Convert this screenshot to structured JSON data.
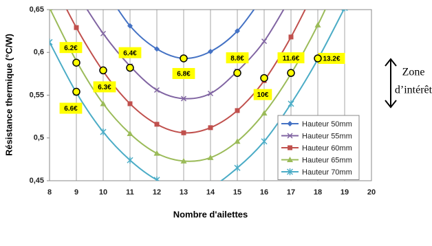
{
  "chart_data": {
    "type": "line",
    "xlabel": "Nombre d'ailettes",
    "ylabel": "Résistance thermique (°C/W)",
    "xlim": [
      8,
      20
    ],
    "xticks": [
      8,
      9,
      10,
      11,
      12,
      13,
      14,
      15,
      16,
      17,
      18,
      19,
      20
    ],
    "ylim": [
      0.45,
      0.65
    ],
    "yticks": [
      {
        "value": 0.45,
        "label": "0,45"
      },
      {
        "value": 0.5,
        "label": "0,5"
      },
      {
        "value": 0.55,
        "label": "0,55"
      },
      {
        "value": 0.6,
        "label": "0,6"
      },
      {
        "value": 0.65,
        "label": "0,65"
      }
    ],
    "grid": "x",
    "legend": "lower right",
    "series": [
      {
        "name": "Hauteur 50mm",
        "color": "#4472c4",
        "marker": "diamond",
        "x": [
          10,
          11,
          12,
          13,
          14,
          15,
          16
        ],
        "values": [
          0.677,
          0.631,
          0.604,
          0.593,
          0.601,
          0.625,
          0.667
        ]
      },
      {
        "name": "Hauteur 55mm",
        "color": "#8064a2",
        "marker": "x",
        "x": [
          9,
          10,
          11,
          12,
          13,
          14,
          15,
          16,
          17
        ],
        "values": [
          0.67,
          0.622,
          0.584,
          0.556,
          0.546,
          0.552,
          0.578,
          0.613,
          0.665
        ]
      },
      {
        "name": "Hauteur 60mm",
        "color": "#c0504d",
        "marker": "square",
        "x": [
          8,
          9,
          10,
          11,
          12,
          13,
          14,
          15,
          16,
          17,
          18
        ],
        "values": [
          0.69,
          0.629,
          0.578,
          0.54,
          0.516,
          0.506,
          0.512,
          0.532,
          0.567,
          0.618,
          0.68
        ]
      },
      {
        "name": "Hauteur 65mm",
        "color": "#9bbb59",
        "marker": "triangle",
        "x": [
          8,
          9,
          10,
          11,
          12,
          13,
          14,
          15,
          16,
          17,
          18,
          19
        ],
        "values": [
          0.652,
          0.59,
          0.54,
          0.505,
          0.482,
          0.473,
          0.477,
          0.496,
          0.529,
          0.575,
          0.632,
          0.7
        ]
      },
      {
        "name": "Hauteur 70mm",
        "color": "#4bacc6",
        "marker": "star",
        "x": [
          8,
          9,
          10,
          11,
          12,
          13,
          14,
          15,
          16,
          17,
          18,
          19
        ],
        "values": [
          0.612,
          0.553,
          0.507,
          0.474,
          0.451,
          0.44,
          0.443,
          0.465,
          0.496,
          0.54,
          0.592,
          0.652
        ]
      }
    ],
    "annotations": [
      {
        "x": 9,
        "y": 0.588,
        "label": "6.2€"
      },
      {
        "x": 9,
        "y": 0.554,
        "label": "6.6€"
      },
      {
        "x": 10,
        "y": 0.579,
        "label": "6.3€"
      },
      {
        "x": 11,
        "y": 0.582,
        "label": "6.4€"
      },
      {
        "x": 13,
        "y": 0.593,
        "label": "6.8€"
      },
      {
        "x": 15,
        "y": 0.576,
        "label": "8.8€"
      },
      {
        "x": 16,
        "y": 0.57,
        "label": "10€"
      },
      {
        "x": 17,
        "y": 0.576,
        "label": "11.6€"
      },
      {
        "x": 18,
        "y": 0.593,
        "label": "13.2€"
      }
    ],
    "side_note": [
      "Zone",
      "d’intérêt"
    ]
  }
}
